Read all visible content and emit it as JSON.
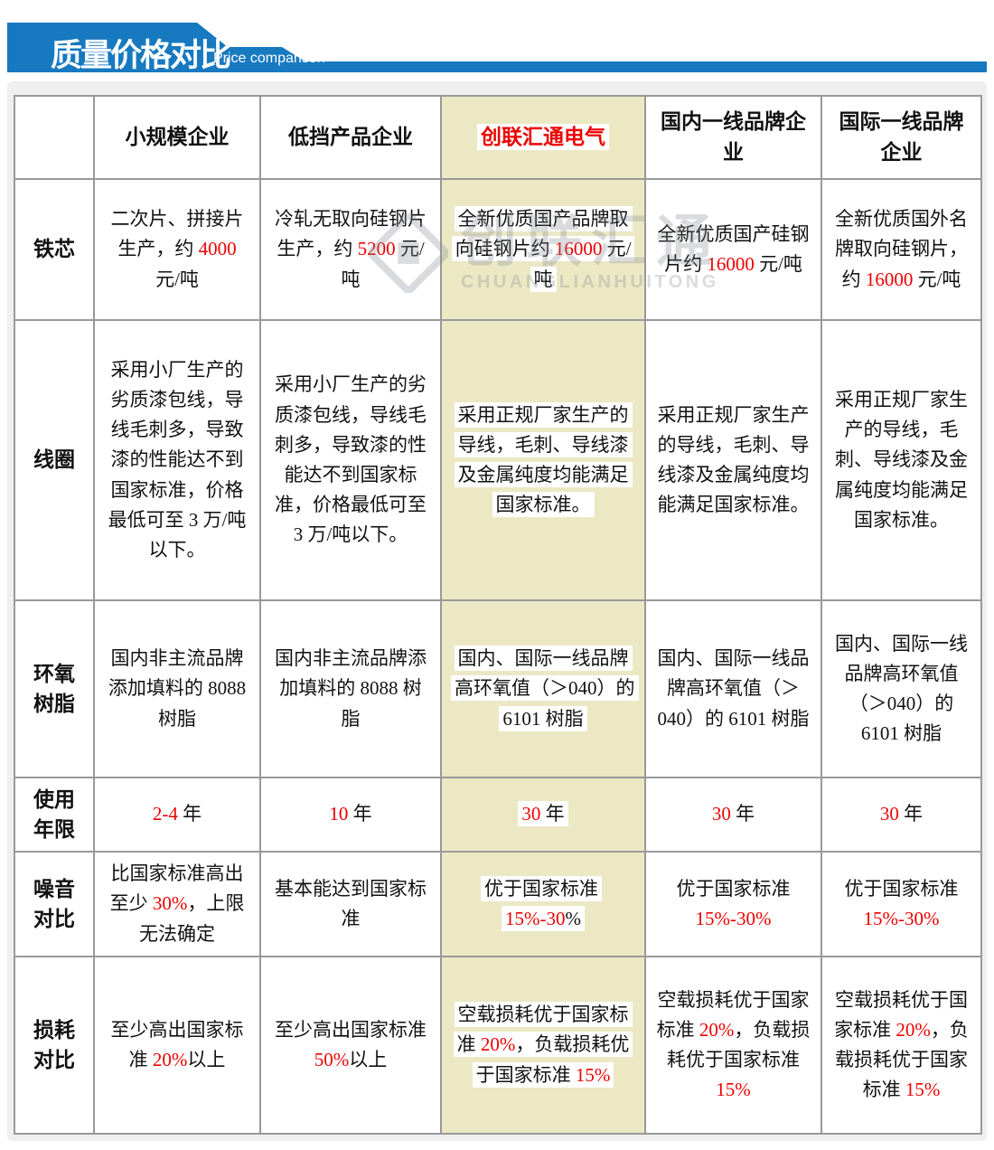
{
  "banner": {
    "title": "质量价格对比",
    "subtitle": "Price comparison"
  },
  "watermark": {
    "cn": "创联汇通",
    "en": "CHUANGLIANHUITONG"
  },
  "colors": {
    "banner_blue": "#1779c0",
    "brand_column_bg": "#ece8c4",
    "accent_red": "#ee0000",
    "table_border_gray": "#999999"
  },
  "table": {
    "columns": [
      "",
      "小规模企业",
      "低挡产品企业",
      "创联汇通电气",
      "国内一线品牌企业",
      "国际一线品牌企业"
    ],
    "rows": [
      {
        "label": "铁芯",
        "cells": [
          {
            "segments": [
              {
                "t": "二次片、拼接片生产，约 "
              },
              {
                "t": "4000",
                "red": true
              },
              {
                "t": " 元/吨"
              }
            ]
          },
          {
            "segments": [
              {
                "t": "冷轧无取向硅钢片生产，约 "
              },
              {
                "t": "5200",
                "red": true
              },
              {
                "t": " 元/吨"
              }
            ]
          },
          {
            "highlight": true,
            "segments": [
              {
                "t": "全新优质国产品牌取向硅钢片约 "
              },
              {
                "t": "16000",
                "red": true
              },
              {
                "t": " 元/吨"
              }
            ]
          },
          {
            "segments": [
              {
                "t": "全新优质国产硅钢片约 "
              },
              {
                "t": "16000",
                "red": true
              },
              {
                "t": " 元/吨"
              }
            ]
          },
          {
            "segments": [
              {
                "t": "全新优质国外名牌取向硅钢片，约 "
              },
              {
                "t": "16000",
                "red": true
              },
              {
                "t": " 元/吨"
              }
            ]
          }
        ]
      },
      {
        "label": "线圈",
        "cells": [
          {
            "segments": [
              {
                "t": "采用小厂生产的劣质漆包线，导线毛刺多，导致漆的性能达不到国家标准，价格最低可至 3 万/吨以下。"
              }
            ]
          },
          {
            "segments": [
              {
                "t": "采用小厂生产的劣质漆包线，导线毛刺多，导致漆的性能达不到国家标准，价格最低可至 3 万/吨以下。"
              }
            ]
          },
          {
            "highlight": true,
            "segments": [
              {
                "t": "采用正规厂家生产的导线，毛刺、导线漆及金属纯度均能满足国家标准。"
              }
            ]
          },
          {
            "segments": [
              {
                "t": "采用正规厂家生产的导线，毛刺、导线漆及金属纯度均能满足国家标准。"
              }
            ]
          },
          {
            "segments": [
              {
                "t": "采用正规厂家生产的导线，毛刺、导线漆及金属纯度均能满足国家标准。"
              }
            ]
          }
        ]
      },
      {
        "label": "环氧树脂",
        "cells": [
          {
            "segments": [
              {
                "t": "国内非主流品牌添加填料的 8088 树脂"
              }
            ]
          },
          {
            "segments": [
              {
                "t": "国内非主流品牌添加填料的 8088 树脂"
              }
            ]
          },
          {
            "highlight": true,
            "segments": [
              {
                "t": "国内、国际一线品牌高环氧值（＞040）的 6101 树脂"
              }
            ]
          },
          {
            "segments": [
              {
                "t": "国内、国际一线品牌高环氧值（＞040）的 6101 树脂"
              }
            ]
          },
          {
            "segments": [
              {
                "t": "国内、国际一线品牌高环氧值（＞040）的 6101 树脂"
              }
            ]
          }
        ]
      },
      {
        "label": "使用年限",
        "cells": [
          {
            "segments": [
              {
                "t": "2-4",
                "red": true
              },
              {
                "t": " 年"
              }
            ]
          },
          {
            "segments": [
              {
                "t": "10",
                "red": true
              },
              {
                "t": " 年"
              }
            ]
          },
          {
            "highlight": true,
            "segments": [
              {
                "t": "30",
                "red": true
              },
              {
                "t": " 年"
              }
            ]
          },
          {
            "segments": [
              {
                "t": "30",
                "red": true
              },
              {
                "t": " 年"
              }
            ]
          },
          {
            "segments": [
              {
                "t": "30",
                "red": true
              },
              {
                "t": " 年"
              }
            ]
          }
        ]
      },
      {
        "label": "噪音对比",
        "cells": [
          {
            "segments": [
              {
                "t": "比国家标准高出至少 "
              },
              {
                "t": "30%",
                "red": true
              },
              {
                "t": "，上限无法确定"
              }
            ]
          },
          {
            "segments": [
              {
                "t": "基本能达到国家标准"
              }
            ]
          },
          {
            "highlight": true,
            "segments": [
              {
                "t": "优于国家标准 "
              },
              {
                "t": "15%-30",
                "red": true
              },
              {
                "t": "%"
              }
            ]
          },
          {
            "segments": [
              {
                "t": "优于国家标准 "
              },
              {
                "t": "15%-30%",
                "red": true
              }
            ]
          },
          {
            "segments": [
              {
                "t": "优于国家标准 "
              },
              {
                "t": "15%-30%",
                "red": true
              }
            ]
          }
        ]
      },
      {
        "label": "损耗对比",
        "cells": [
          {
            "segments": [
              {
                "t": "至少高出国家标准 "
              },
              {
                "t": "20%",
                "red": true
              },
              {
                "t": "以上"
              }
            ]
          },
          {
            "segments": [
              {
                "t": "至少高出国家标准 "
              },
              {
                "t": "50%",
                "red": true
              },
              {
                "t": "以上"
              }
            ]
          },
          {
            "highlight": true,
            "segments": [
              {
                "t": "空载损耗优于国家标准 "
              },
              {
                "t": "20%",
                "red": true
              },
              {
                "t": "，负载损耗优于国家标准 "
              },
              {
                "t": "15%",
                "red": true
              }
            ]
          },
          {
            "segments": [
              {
                "t": "空载损耗优于国家标准 "
              },
              {
                "t": "20%",
                "red": true
              },
              {
                "t": "，负载损耗优于国家标准 "
              },
              {
                "t": "15%",
                "red": true
              }
            ]
          },
          {
            "segments": [
              {
                "t": "空载损耗优于国家标准 "
              },
              {
                "t": "20%",
                "red": true
              },
              {
                "t": "，负载损耗优于国家标准 "
              },
              {
                "t": "15%",
                "red": true
              }
            ]
          }
        ]
      }
    ]
  }
}
